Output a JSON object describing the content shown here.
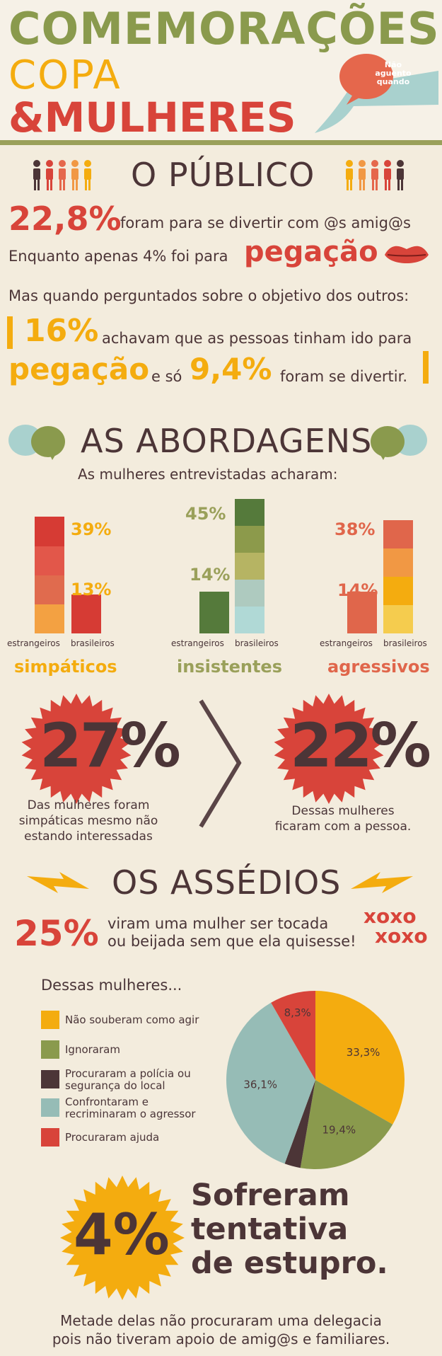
{
  "header": {
    "title_line1": "COMEMORAÇÕES",
    "title_line2": "COPA",
    "title_line3": "&MULHERES",
    "badge_text": "Não aguento quando"
  },
  "publico": {
    "heading": "O PÚBLICO",
    "stat1_value": "22,8%",
    "stat1_text": "foram para se divertir com @s amig@s",
    "stat2_text": "Enquanto apenas 4% foi para",
    "stat2_highlight": "pegação",
    "question_text": "Mas quando perguntados sobre o objetivo dos outros:",
    "stat3_value": "16%",
    "stat3_text": "achavam que as pessoas tinham ido para",
    "stat3_highlight": "pegação",
    "stat3_join": "e só",
    "stat4_value": "9,4%",
    "stat4_text": "foram se divertir."
  },
  "abordagens": {
    "heading": "AS ABORDAGENS",
    "subheading": "As mulheres entrevistadas acharam:"
  },
  "chart_data": [
    {
      "type": "bar",
      "title": "simpáticos",
      "categories": [
        "estrangeiros",
        "brasileiros"
      ],
      "values": [
        39,
        13
      ],
      "value_labels": [
        "39%",
        "13%"
      ],
      "colors": [
        "#f3a142",
        "#e06b4e",
        "#e2574a",
        "#d63b34"
      ]
    },
    {
      "type": "bar",
      "title": "insistentes",
      "categories": [
        "estrangeiros",
        "brasileiros"
      ],
      "values": [
        14,
        45
      ],
      "value_labels": [
        "14%",
        "45%"
      ],
      "colors": [
        "#557a3b",
        "#8c9a4b",
        "#b6b463",
        "#aecabf",
        "#b0d9d6"
      ]
    },
    {
      "type": "bar",
      "title": "agressivos",
      "categories": [
        "estrangeiros",
        "brasileiros"
      ],
      "values": [
        14,
        38
      ],
      "value_labels": [
        "14%",
        "38%"
      ],
      "colors": [
        "#f5cc4e",
        "#f4ac0f",
        "#f19844",
        "#e0664b"
      ]
    },
    {
      "type": "pie",
      "title": "Dessas mulheres...",
      "categories": [
        "Não souberam como agir",
        "Ignoraram",
        "Procuraram a polícia ou segurança do local",
        "Confrontaram e recriminaram o agressor",
        "Procuraram ajuda"
      ],
      "values": [
        33.3,
        19.4,
        2.9,
        36.1,
        8.3
      ],
      "value_labels": [
        "33,3%",
        "19,4%",
        "",
        "36,1%",
        "8,3%"
      ],
      "colors": [
        "#f4ac0f",
        "#8a9a4d",
        "#4c3537",
        "#96bcb6",
        "#d8443a"
      ]
    }
  ],
  "stats_mid": {
    "left_value": "27%",
    "left_text_1": "Das mulheres foram",
    "left_text_2": "simpáticas mesmo não",
    "left_text_3": "estando interessadas",
    "right_value": "22%",
    "right_text_1": "Dessas mulheres",
    "right_text_2": "ficaram com a pessoa."
  },
  "assedios": {
    "heading": "OS ASSÉDIOS",
    "stat_value": "25%",
    "stat_text_1": "viram uma mulher ser tocada",
    "stat_text_2": "ou beijada sem que ela quisesse!",
    "xoxo_1": "xoxo",
    "xoxo_2": "xoxo",
    "legend_title": "Dessas mulheres..."
  },
  "final": {
    "value": "4%",
    "text_1": "Sofreram",
    "text_2": "tentativa",
    "text_3": "de estupro.",
    "footer_1": "Metade delas não procuraram uma delegacia",
    "footer_2": "pois não tiveram apoio de amig@s e familiares."
  },
  "colors": {
    "olive": "#8a9a4d",
    "yellow": "#f4ac0f",
    "red": "#d8443a",
    "dark": "#4c3537",
    "cream": "#f3ecdd"
  }
}
